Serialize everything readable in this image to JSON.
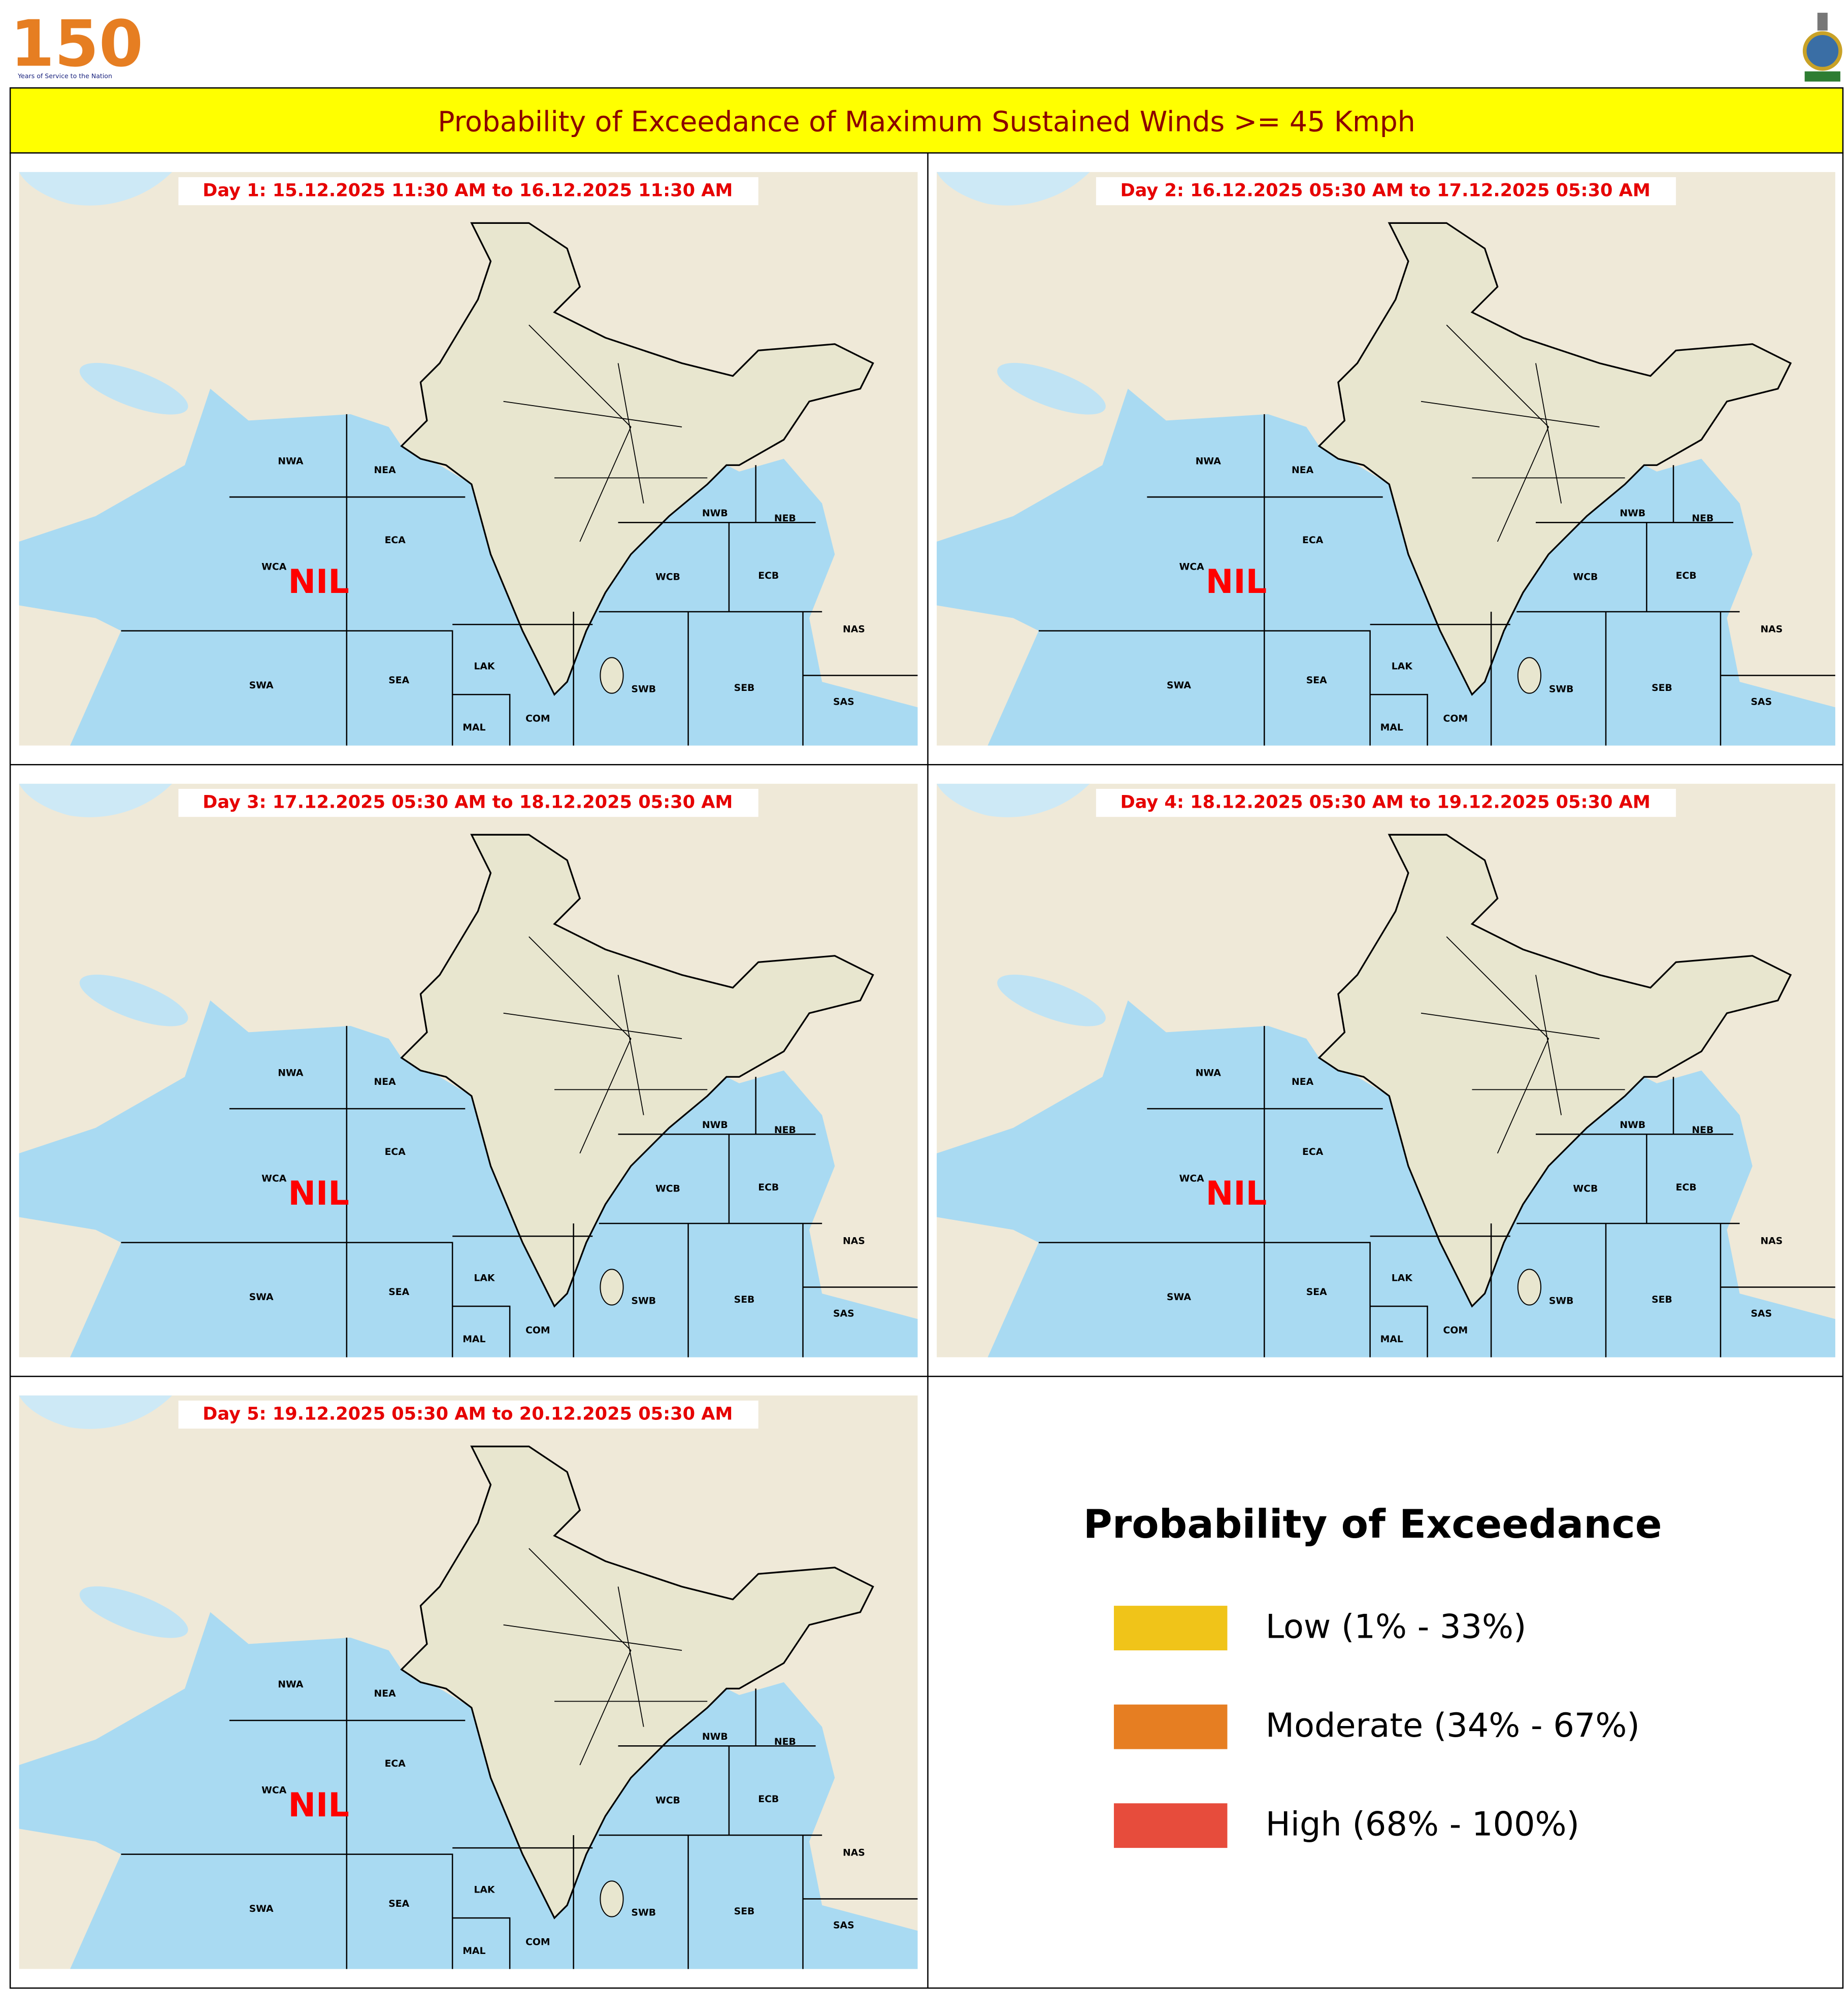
{
  "header": {
    "logo_number": "150",
    "logo_caption": "Years of Service to the Nation",
    "title": "Probability of Exceedance of Maximum Sustained Winds >= 45 Kmph"
  },
  "panels": [
    {
      "label": "Day 1: 15.12.2025 11:30 AM to 16.12.2025 11:30 AM",
      "status": "NIL"
    },
    {
      "label": "Day 2: 16.12.2025 05:30 AM to 17.12.2025 05:30 AM",
      "status": "NIL"
    },
    {
      "label": "Day 3: 17.12.2025 05:30 AM to 18.12.2025 05:30 AM",
      "status": "NIL"
    },
    {
      "label": "Day 4: 18.12.2025 05:30 AM to 19.12.2025 05:30 AM",
      "status": "NIL"
    },
    {
      "label": "Day 5: 19.12.2025 05:30 AM to 20.12.2025 05:30 AM",
      "status": "NIL"
    }
  ],
  "regions": [
    "NWA",
    "NEA",
    "ECA",
    "WCA",
    "NWB",
    "NEB",
    "WCB",
    "ECB",
    "NAS",
    "LAK",
    "SWA",
    "SEA",
    "SWB",
    "SEB",
    "SAS",
    "MAL",
    "COM"
  ],
  "legend": {
    "title": "Probability of Exceedance",
    "items": [
      {
        "label": "Low (1% - 33%)",
        "color": "#f0c419"
      },
      {
        "label": "Moderate (34% - 67%)",
        "color": "#e67e22"
      },
      {
        "label": "High (68% - 100%)",
        "color": "#e74c3c"
      }
    ]
  }
}
